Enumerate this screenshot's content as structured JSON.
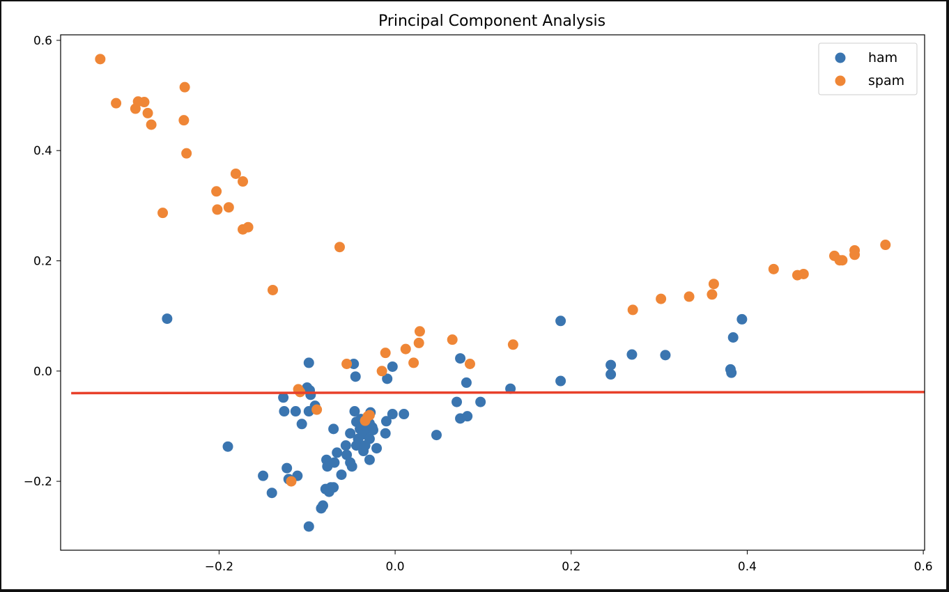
{
  "chart_data": {
    "type": "scatter",
    "title": "Principal Component Analysis",
    "xlabel": "",
    "ylabel": "",
    "xlim": [
      -0.38,
      0.6015
    ],
    "ylim": [
      -0.325,
      0.61
    ],
    "xticks": [
      -0.2,
      0.0,
      0.2,
      0.4,
      0.6
    ],
    "xtick_labels": [
      "−0.2",
      "0.0",
      "0.2",
      "0.4",
      "0.6"
    ],
    "yticks": [
      -0.2,
      0.0,
      0.2,
      0.4,
      0.6
    ],
    "ytick_labels": [
      "−0.2",
      "0.0",
      "0.2",
      "0.4",
      "0.6"
    ],
    "grid": false,
    "legend_position": "top-right",
    "series": [
      {
        "name": "ham",
        "color": "#3a75b0",
        "points": [
          [
            -0.259,
            0.095
          ],
          [
            -0.19,
            -0.137
          ],
          [
            -0.15,
            -0.19
          ],
          [
            -0.14,
            -0.221
          ],
          [
            -0.127,
            -0.048
          ],
          [
            -0.126,
            -0.073
          ],
          [
            -0.123,
            -0.176
          ],
          [
            -0.121,
            -0.196
          ],
          [
            -0.113,
            -0.073
          ],
          [
            -0.111,
            -0.19
          ],
          [
            -0.106,
            -0.096
          ],
          [
            -0.098,
            0.015
          ],
          [
            -0.1,
            -0.03
          ],
          [
            -0.097,
            -0.035
          ],
          [
            -0.096,
            -0.043
          ],
          [
            -0.098,
            -0.073
          ],
          [
            -0.091,
            -0.063
          ],
          [
            -0.084,
            -0.249
          ],
          [
            -0.082,
            -0.244
          ],
          [
            -0.079,
            -0.214
          ],
          [
            -0.078,
            -0.161
          ],
          [
            -0.077,
            -0.173
          ],
          [
            -0.075,
            -0.219
          ],
          [
            -0.073,
            -0.211
          ],
          [
            -0.07,
            -0.105
          ],
          [
            -0.07,
            -0.211
          ],
          [
            -0.069,
            -0.166
          ],
          [
            -0.066,
            -0.148
          ],
          [
            -0.061,
            -0.188
          ],
          [
            -0.056,
            -0.135
          ],
          [
            -0.055,
            -0.152
          ],
          [
            -0.051,
            -0.113
          ],
          [
            -0.051,
            -0.166
          ],
          [
            -0.049,
            -0.173
          ],
          [
            -0.047,
            0.013
          ],
          [
            -0.045,
            -0.01
          ],
          [
            -0.046,
            -0.073
          ],
          [
            -0.044,
            -0.092
          ],
          [
            -0.044,
            -0.135
          ],
          [
            -0.042,
            -0.123
          ],
          [
            -0.04,
            -0.105
          ],
          [
            -0.039,
            -0.087
          ],
          [
            -0.037,
            -0.115
          ],
          [
            -0.036,
            -0.145
          ],
          [
            -0.034,
            -0.135
          ],
          [
            -0.031,
            -0.105
          ],
          [
            -0.029,
            -0.123
          ],
          [
            -0.029,
            -0.095
          ],
          [
            -0.028,
            -0.075
          ],
          [
            -0.026,
            -0.102
          ],
          [
            -0.025,
            -0.107
          ],
          [
            -0.021,
            -0.14
          ],
          [
            -0.029,
            -0.161
          ],
          [
            -0.003,
            -0.078
          ],
          [
            -0.01,
            -0.091
          ],
          [
            -0.011,
            -0.113
          ],
          [
            0.01,
            -0.078
          ],
          [
            -0.009,
            -0.014
          ],
          [
            -0.003,
            0.008
          ],
          [
            0.047,
            -0.116
          ],
          [
            0.07,
            -0.056
          ],
          [
            0.074,
            0.023
          ],
          [
            0.074,
            -0.086
          ],
          [
            0.081,
            -0.021
          ],
          [
            0.082,
            -0.082
          ],
          [
            0.097,
            -0.056
          ],
          [
            0.131,
            -0.032
          ],
          [
            0.188,
            0.091
          ],
          [
            0.188,
            -0.018
          ],
          [
            0.245,
            -0.006
          ],
          [
            0.245,
            0.011
          ],
          [
            0.269,
            0.03
          ],
          [
            0.307,
            0.029
          ],
          [
            0.381,
            0.003
          ],
          [
            0.382,
            -0.003
          ],
          [
            0.384,
            0.061
          ],
          [
            0.394,
            0.094
          ],
          [
            -0.098,
            -0.282
          ]
        ]
      },
      {
        "name": "spam",
        "color": "#ef8636",
        "points": [
          [
            -0.335,
            0.566
          ],
          [
            -0.317,
            0.486
          ],
          [
            -0.295,
            0.476
          ],
          [
            -0.292,
            0.489
          ],
          [
            -0.285,
            0.488
          ],
          [
            -0.281,
            0.468
          ],
          [
            -0.277,
            0.447
          ],
          [
            -0.239,
            0.515
          ],
          [
            -0.24,
            0.455
          ],
          [
            -0.237,
            0.395
          ],
          [
            -0.264,
            0.287
          ],
          [
            -0.203,
            0.326
          ],
          [
            -0.202,
            0.293
          ],
          [
            -0.189,
            0.297
          ],
          [
            -0.181,
            0.358
          ],
          [
            -0.173,
            0.344
          ],
          [
            -0.173,
            0.257
          ],
          [
            -0.167,
            0.261
          ],
          [
            -0.139,
            0.147
          ],
          [
            -0.063,
            0.225
          ],
          [
            -0.055,
            0.013
          ],
          [
            -0.015,
            0.0
          ],
          [
            -0.011,
            0.033
          ],
          [
            0.012,
            0.04
          ],
          [
            0.021,
            0.015
          ],
          [
            0.027,
            0.051
          ],
          [
            0.028,
            0.072
          ],
          [
            0.065,
            0.057
          ],
          [
            0.085,
            0.013
          ],
          [
            0.134,
            0.048
          ],
          [
            -0.11,
            -0.033
          ],
          [
            -0.108,
            -0.038
          ],
          [
            -0.089,
            -0.07
          ],
          [
            -0.118,
            -0.2
          ],
          [
            -0.034,
            -0.09
          ],
          [
            -0.031,
            -0.082
          ],
          [
            -0.029,
            -0.08
          ],
          [
            0.27,
            0.111
          ],
          [
            0.302,
            0.131
          ],
          [
            0.334,
            0.135
          ],
          [
            0.36,
            0.139
          ],
          [
            0.362,
            0.158
          ],
          [
            0.43,
            0.185
          ],
          [
            0.457,
            0.174
          ],
          [
            0.464,
            0.176
          ],
          [
            0.499,
            0.209
          ],
          [
            0.505,
            0.201
          ],
          [
            0.508,
            0.201
          ],
          [
            0.522,
            0.219
          ],
          [
            0.522,
            0.211
          ],
          [
            0.557,
            0.229
          ]
        ]
      }
    ],
    "lines": [
      {
        "color": "#e8402a",
        "points": [
          [
            -0.368,
            -0.04
          ],
          [
            0.6015,
            -0.038
          ]
        ]
      }
    ]
  }
}
